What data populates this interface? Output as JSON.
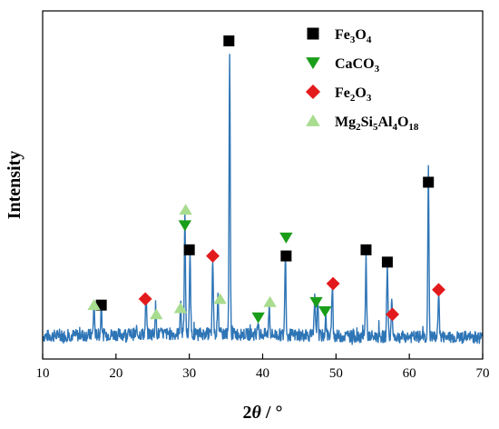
{
  "chart_data": {
    "type": "line",
    "title": "",
    "xlabel": "2θ / °",
    "ylabel": "Intensity",
    "xlim": [
      10,
      70
    ],
    "ylim": [
      0,
      1.0
    ],
    "x_ticks": [
      10,
      20,
      30,
      40,
      50,
      60,
      70
    ],
    "y_ticks_shown": false,
    "grid": false,
    "legend_position": "top-right",
    "line_color": "#2e75b6",
    "noise_level": 0.02,
    "series": [
      {
        "peaks": [
          {
            "x": 17.0,
            "y": 0.1
          },
          {
            "x": 18.0,
            "y": 0.09
          },
          {
            "x": 24.1,
            "y": 0.13
          },
          {
            "x": 25.4,
            "y": 0.09
          },
          {
            "x": 28.8,
            "y": 0.1
          },
          {
            "x": 29.4,
            "y": 0.38
          },
          {
            "x": 30.1,
            "y": 0.26
          },
          {
            "x": 33.2,
            "y": 0.24
          },
          {
            "x": 33.9,
            "y": 0.14
          },
          {
            "x": 35.5,
            "y": 0.92
          },
          {
            "x": 39.4,
            "y": 0.05
          },
          {
            "x": 40.9,
            "y": 0.1
          },
          {
            "x": 43.1,
            "y": 0.28
          },
          {
            "x": 47.1,
            "y": 0.12
          },
          {
            "x": 47.5,
            "y": 0.12
          },
          {
            "x": 48.6,
            "y": 0.07
          },
          {
            "x": 49.5,
            "y": 0.17
          },
          {
            "x": 54.1,
            "y": 0.26
          },
          {
            "x": 57.0,
            "y": 0.25
          },
          {
            "x": 57.6,
            "y": 0.12
          },
          {
            "x": 62.6,
            "y": 0.54
          },
          {
            "x": 64.0,
            "y": 0.16
          }
        ]
      }
    ],
    "markers": [
      {
        "phase": "Fe3O4",
        "points": [
          {
            "x": 18.0,
            "y": 0.14
          },
          {
            "x": 30.0,
            "y": 0.32
          },
          {
            "x": 35.4,
            "y": 1.0
          },
          {
            "x": 43.2,
            "y": 0.3
          },
          {
            "x": 54.1,
            "y": 0.32
          },
          {
            "x": 57.0,
            "y": 0.28
          },
          {
            "x": 62.6,
            "y": 0.54
          }
        ]
      },
      {
        "phase": "CaCO3",
        "points": [
          {
            "x": 29.4,
            "y": 0.4
          },
          {
            "x": 39.4,
            "y": 0.1
          },
          {
            "x": 43.2,
            "y": 0.36
          },
          {
            "x": 47.3,
            "y": 0.15
          },
          {
            "x": 48.5,
            "y": 0.12
          }
        ]
      },
      {
        "phase": "Fe2O3",
        "points": [
          {
            "x": 24.0,
            "y": 0.16
          },
          {
            "x": 33.2,
            "y": 0.3
          },
          {
            "x": 49.6,
            "y": 0.21
          },
          {
            "x": 57.7,
            "y": 0.11
          },
          {
            "x": 64.0,
            "y": 0.19
          }
        ]
      },
      {
        "phase": "Mg2Si5Al4O18",
        "points": [
          {
            "x": 17.0,
            "y": 0.14
          },
          {
            "x": 25.5,
            "y": 0.11
          },
          {
            "x": 28.8,
            "y": 0.13
          },
          {
            "x": 29.5,
            "y": 0.45
          },
          {
            "x": 34.2,
            "y": 0.16
          },
          {
            "x": 41.0,
            "y": 0.15
          }
        ]
      }
    ],
    "legend": [
      {
        "phase": "Fe3O4",
        "label_main": "Fe",
        "parts": [
          [
            "Fe",
            ""
          ],
          [
            "3",
            "sub"
          ],
          [
            "O",
            ""
          ],
          [
            "4",
            "sub"
          ]
        ],
        "marker": "square",
        "color": "#000000"
      },
      {
        "phase": "CaCO3",
        "label_main": "CaCO",
        "parts": [
          [
            "CaCO",
            ""
          ],
          [
            "3",
            "sub"
          ]
        ],
        "marker": "triangle-down",
        "color": "#1a9e1a"
      },
      {
        "phase": "Fe2O3",
        "label_main": "Fe",
        "parts": [
          [
            "Fe",
            ""
          ],
          [
            "2",
            "sub"
          ],
          [
            "O",
            ""
          ],
          [
            "3",
            "sub"
          ]
        ],
        "marker": "diamond",
        "color": "#e31a1c"
      },
      {
        "phase": "Mg2Si5Al4O18",
        "label_main": "Mg",
        "parts": [
          [
            "Mg",
            ""
          ],
          [
            "2",
            "sub"
          ],
          [
            "Si",
            ""
          ],
          [
            "5",
            "sub"
          ],
          [
            "Al",
            ""
          ],
          [
            "4",
            "sub"
          ],
          [
            "O",
            ""
          ],
          [
            "18",
            "sub"
          ]
        ],
        "marker": "triangle-up",
        "color": "#a8dc8f"
      }
    ]
  }
}
